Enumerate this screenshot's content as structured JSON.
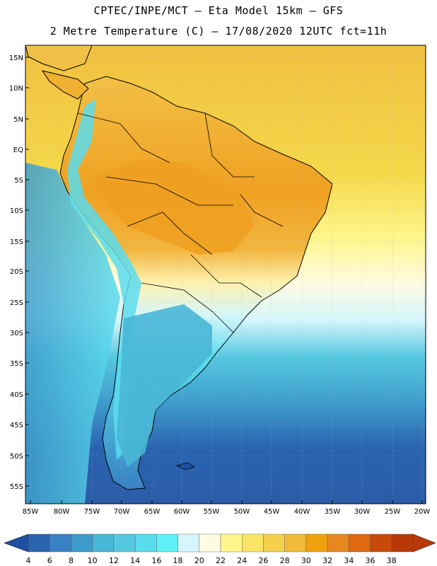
{
  "header": {
    "line1": "CPTEC/INPE/MCT –  Eta Model 15km – GFS",
    "line2": "2 Metre Temperature (C) – 17/08/2020 12UTC fct=11h"
  },
  "map": {
    "lat_labels": [
      "15N",
      "10N",
      "5N",
      "EQ",
      "5S",
      "10S",
      "15S",
      "20S",
      "25S",
      "30S",
      "35S",
      "40S",
      "45S",
      "50S",
      "55S"
    ],
    "lon_labels": [
      "85W",
      "80W",
      "75W",
      "70W",
      "65W",
      "60W",
      "55W",
      "50W",
      "45W",
      "40W",
      "35W",
      "30W",
      "25W",
      "20W"
    ],
    "colors": {
      "ocean_north": "#f0c040",
      "ocean_equator": "#f5d84a",
      "land_hot": "#f0a020",
      "land_warm": "#f2c046",
      "andes_cool": "#5ae0ee",
      "patagonia": "#3ab8d8",
      "south_ocean": "#2a5ca8",
      "border": "#000000",
      "grid": "#b0b0b0"
    }
  },
  "colorbar": {
    "labels": [
      "4",
      "6",
      "8",
      "10",
      "12",
      "14",
      "16",
      "18",
      "20",
      "22",
      "24",
      "26",
      "28",
      "30",
      "32",
      "34",
      "36",
      "38"
    ],
    "colors": [
      "#2a63b0",
      "#3a80c4",
      "#3e9ccc",
      "#48b6d6",
      "#55c8e0",
      "#5adcee",
      "#5cf2f8",
      "#d4f6fc",
      "#fffbe2",
      "#fef68a",
      "#f9e466",
      "#f5d04c",
      "#f0bb38",
      "#f0a20c",
      "#e8871c",
      "#dd6a10",
      "#c84a08",
      "#b93808"
    ],
    "left_arrow_color": "#1f4fa0",
    "right_arrow_color": "#b93808"
  }
}
